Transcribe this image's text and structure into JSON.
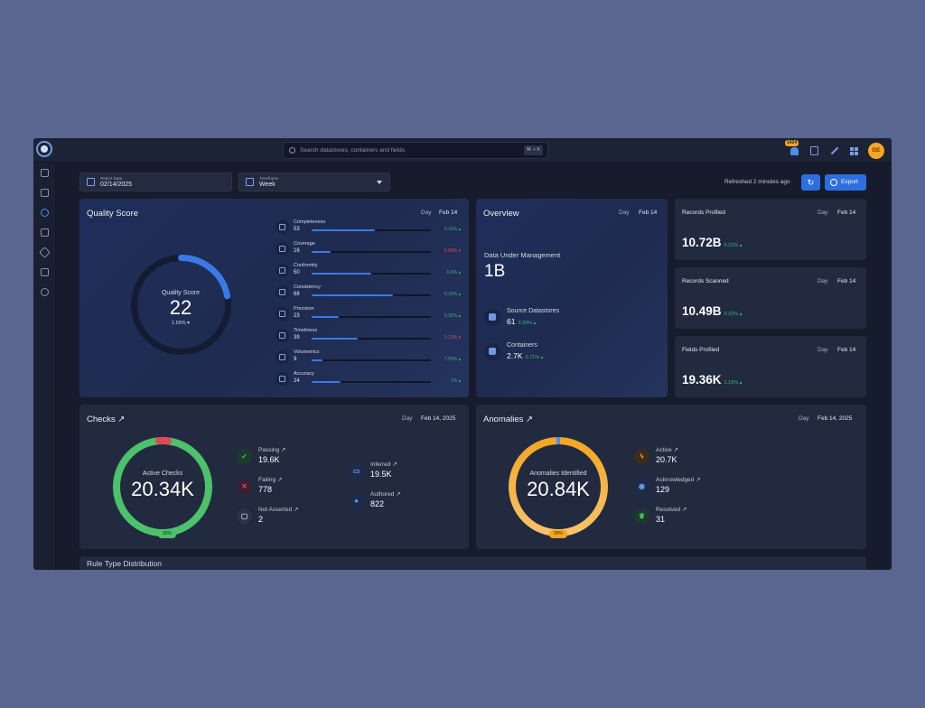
{
  "topbar": {
    "search_placeholder": "Search datastores, containers and fields",
    "search_shortcut": "⌘ + K",
    "notification_count": "1424",
    "avatar_initials": "DE"
  },
  "filters": {
    "report_date_label": "Report Date",
    "report_date_value": "02/14/2025",
    "timeframe_label": "Timeframe",
    "timeframe_value": "Week",
    "refreshed": "Refreshed 2 minutes ago",
    "export_label": "Export"
  },
  "quality_score": {
    "title": "Quality Score",
    "day": "Day",
    "date": "Feb 14",
    "center_label": "Quality Score",
    "score": "22",
    "score_fraction": 0.22,
    "change": "1.55%",
    "metrics": [
      {
        "name": "Completeness",
        "value": "53",
        "pct": "0.16%",
        "dir": "up"
      },
      {
        "name": "Coverage",
        "value": "16",
        "pct": "6.86%",
        "dir": "down"
      },
      {
        "name": "Conformity",
        "value": "50",
        "pct": "0.6%",
        "dir": "up"
      },
      {
        "name": "Consistency",
        "value": "68",
        "pct": "0.16%",
        "dir": "up"
      },
      {
        "name": "Precision",
        "value": "23",
        "pct": "0.32%",
        "dir": "up"
      },
      {
        "name": "Timeliness",
        "value": "39",
        "pct": "3.13%",
        "dir": "down"
      },
      {
        "name": "Volumetrics",
        "value": "9",
        "pct": "7.55%",
        "dir": "up"
      },
      {
        "name": "Accuracy",
        "value": "24",
        "pct": "1%",
        "dir": "up"
      }
    ]
  },
  "overview": {
    "title": "Overview",
    "day": "Day",
    "date": "Feb 14",
    "dm_label": "Data Under Management",
    "dm_value": "1B",
    "source_label": "Source Datastores",
    "source_value": "61",
    "source_pct": "3.39%",
    "containers_label": "Containers",
    "containers_value": "2.7K",
    "containers_pct": "0.71%"
  },
  "stats": [
    {
      "label": "Records Profiled",
      "day": "Day",
      "date": "Feb 14",
      "value": "10.72B",
      "pct": "0.21%"
    },
    {
      "label": "Records Scanned",
      "day": "Day",
      "date": "Feb 14",
      "value": "10.49B",
      "pct": "0.32%"
    },
    {
      "label": "Fields Profiled",
      "day": "Day",
      "date": "Feb 14",
      "value": "19.36K",
      "pct": "1.19%"
    }
  ],
  "checks": {
    "title": "Checks ↗",
    "day": "Day",
    "date": "Feb 14, 2025",
    "center_label": "Active Checks",
    "center_value": "20.34K",
    "pill": "96%",
    "items": [
      {
        "name": "Passing ↗",
        "value": "19.6K"
      },
      {
        "name": "Failing ↗",
        "value": "778"
      },
      {
        "name": "Not Asserted ↗",
        "value": "2"
      },
      {
        "name": "Inferred ↗",
        "value": "19.5K"
      },
      {
        "name": "Authored ↗",
        "value": "822"
      }
    ]
  },
  "anomalies": {
    "title": "Anomalies ↗",
    "day": "Day",
    "date": "Feb 14, 2025",
    "center_label": "Anomalies Identified",
    "center_value": "20.84K",
    "pill": "99%",
    "items": [
      {
        "name": "Active ↗",
        "value": "20.7K"
      },
      {
        "name": "Acknowledged ↗",
        "value": "129"
      },
      {
        "name": "Resolved ↗",
        "value": "31"
      }
    ]
  },
  "bottom": {
    "title": "Rule Type Distribution"
  },
  "colors": {
    "accent": "#2d6fe0",
    "up": "#37b878",
    "down": "#e0475b",
    "checks_green": "#4cc26a",
    "anomaly_orange": "#f5a623"
  }
}
